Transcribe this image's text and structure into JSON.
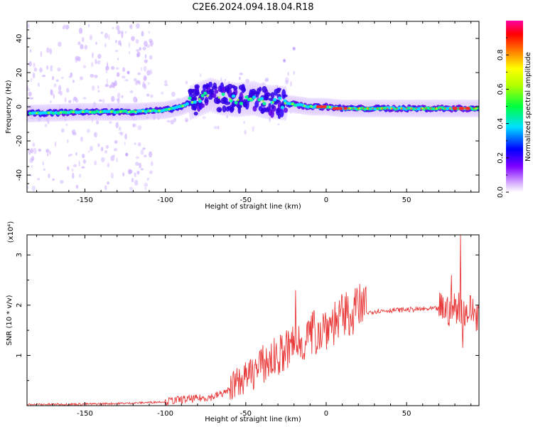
{
  "figure": {
    "title": "C2E6.2024.094.18.04.R18"
  },
  "chart_data": [
    {
      "type": "heatmap",
      "xlabel": "Height of straight line (km)",
      "ylabel": "Frequency (Hz)",
      "xlim": [
        -186,
        95
      ],
      "ylim": [
        -50,
        50
      ],
      "x_ticks": [
        -150,
        -100,
        -50,
        0,
        50
      ],
      "y_ticks": [
        -40,
        -20,
        0,
        20,
        40
      ],
      "grid": false,
      "ridge": [
        {
          "x": -186,
          "y": -4
        },
        {
          "x": -150,
          "y": -3
        },
        {
          "x": -120,
          "y": -3
        },
        {
          "x": -100,
          "y": -2
        },
        {
          "x": -90,
          "y": 0
        },
        {
          "x": -80,
          "y": 4
        },
        {
          "x": -72,
          "y": 7
        },
        {
          "x": -65,
          "y": 5
        },
        {
          "x": -55,
          "y": 4
        },
        {
          "x": -45,
          "y": 5
        },
        {
          "x": -38,
          "y": 3
        },
        {
          "x": -25,
          "y": 2
        },
        {
          "x": -10,
          "y": 0
        },
        {
          "x": 0,
          "y": 0
        },
        {
          "x": 10,
          "y": -1
        },
        {
          "x": 50,
          "y": -1
        },
        {
          "x": 95,
          "y": -1
        }
      ],
      "colorbar": {
        "label": "Normalized spectral amplitude",
        "range": [
          0,
          1
        ],
        "ticks": [
          "0.0",
          "0.2",
          "0.4",
          "0.6",
          "0.8"
        ],
        "colormap": "rainbow"
      }
    },
    {
      "type": "line",
      "xlabel": "Height of straight line (km)",
      "ylabel": "SNR (10 * v/v)",
      "y_multiplier": "(x10⁴)",
      "xlim": [
        -186,
        95
      ],
      "ylim": [
        0,
        3.4
      ],
      "x_ticks": [
        -150,
        -100,
        -50,
        0,
        50
      ],
      "y_ticks": [
        1,
        2,
        3
      ],
      "color": "#e83a3a",
      "series": [
        {
          "x": [
            -186,
            -150,
            -120,
            -100,
            -90,
            -80,
            -70,
            -60,
            -50,
            -40,
            -30,
            -20,
            -10,
            0,
            10,
            20,
            30,
            40,
            50,
            60,
            70,
            78,
            82,
            86,
            90,
            95
          ],
          "y": [
            0.02,
            0.03,
            0.05,
            0.08,
            0.12,
            0.14,
            0.18,
            0.3,
            0.45,
            0.7,
            0.85,
            1.05,
            1.25,
            1.45,
            1.6,
            1.8,
            1.88,
            1.9,
            1.91,
            1.92,
            1.93,
            1.9,
            2.0,
            1.85,
            1.9,
            1.8
          ]
        }
      ],
      "peaks": [
        {
          "x": -19,
          "y": 2.3
        },
        {
          "x": 78,
          "y": 2.6
        },
        {
          "x": 83.5,
          "y": 3.4
        },
        {
          "x": 85,
          "y": 1.15
        }
      ]
    }
  ]
}
